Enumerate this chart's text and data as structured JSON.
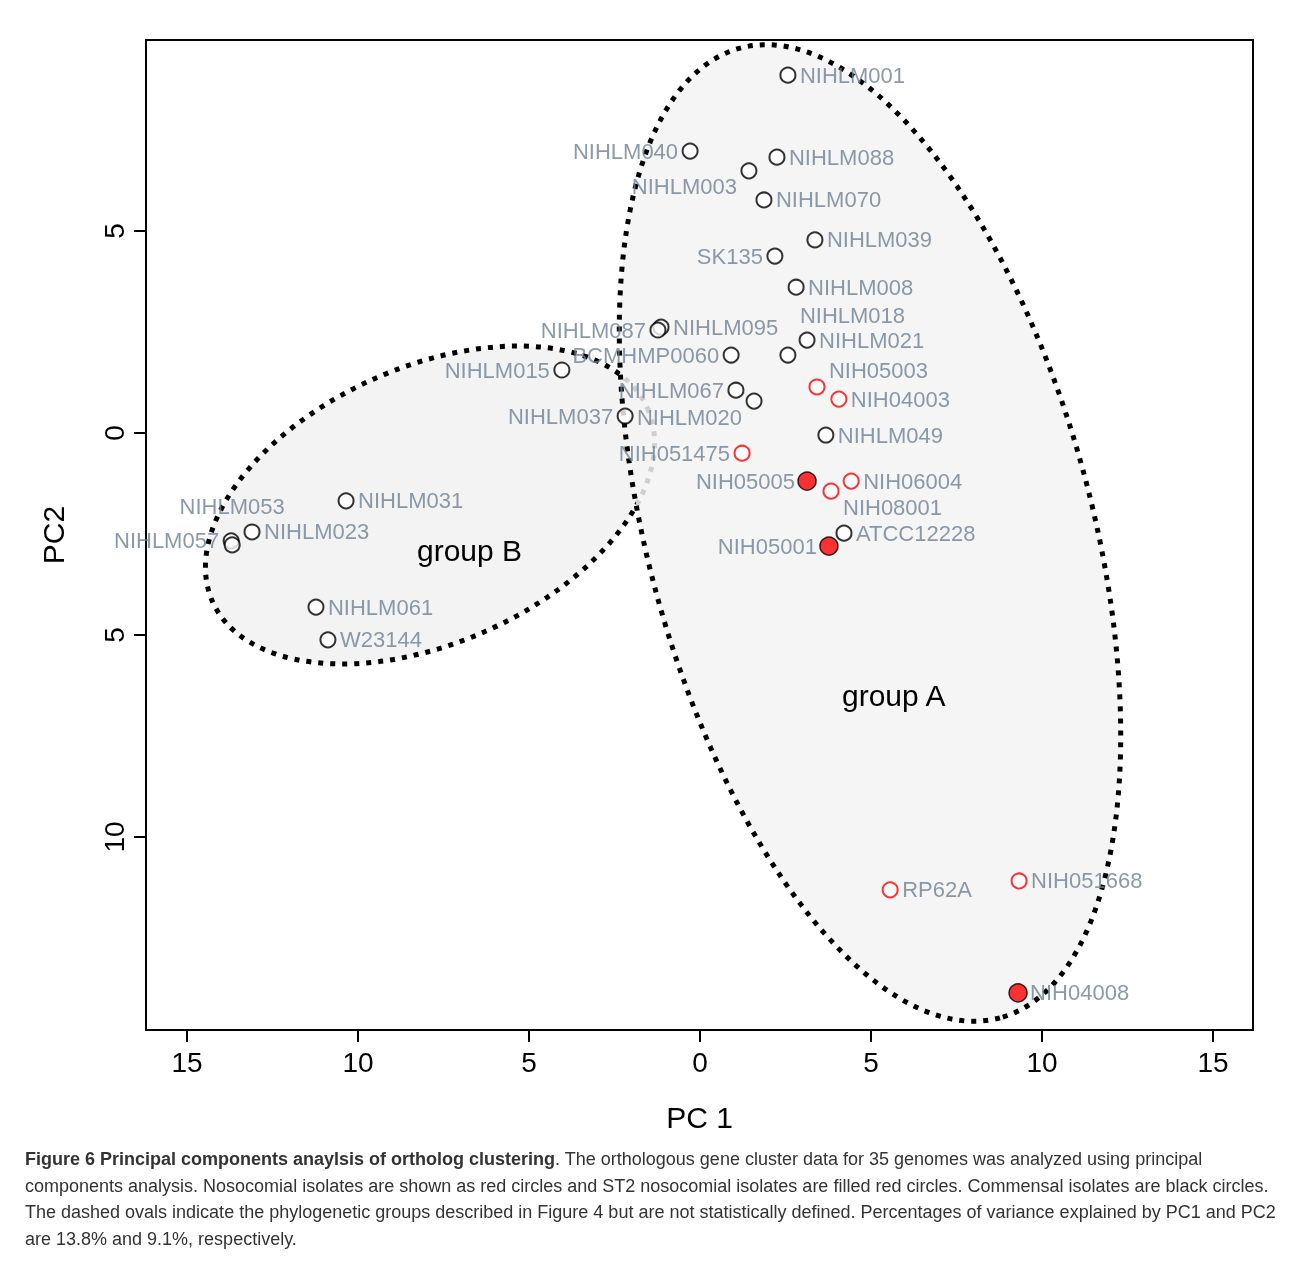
{
  "chart_data": {
    "type": "scatter",
    "xlabel": "PC 1",
    "ylabel": "PC2",
    "xlim": [
      -16.2,
      16.17
    ],
    "ylim": [
      -14.78,
      9.73
    ],
    "xticks": [
      {
        "value": -15,
        "label": "15"
      },
      {
        "value": -10,
        "label": "10"
      },
      {
        "value": -5,
        "label": "5"
      },
      0,
      5,
      10,
      15
    ],
    "yticks": [
      {
        "value": -10,
        "label": "10"
      },
      {
        "value": -5,
        "label": "5"
      },
      0,
      5
    ],
    "grid": false,
    "marker": "circle",
    "series": [
      {
        "color": "#000000",
        "x": [
          2.57,
          -0.29,
          2.25,
          1.43,
          1.87,
          3.36,
          2.19,
          2.81,
          -1.14,
          -1.23,
          0.91,
          3.13,
          2.57,
          1.05,
          1.58,
          3.68,
          4.21,
          -4.04,
          -2.19,
          -10.35,
          -13.1,
          -13.71,
          -13.68,
          -11.23,
          -10.88
        ],
        "values": [
          8.86,
          6.98,
          6.83,
          6.49,
          5.77,
          4.78,
          4.38,
          3.61,
          2.62,
          2.55,
          1.93,
          2.3,
          1.93,
          1.06,
          0.79,
          -0.05,
          -2.48,
          1.56,
          0.42,
          -1.68,
          -2.45,
          -2.67,
          -2.77,
          -4.31,
          -5.12
        ],
        "value_labels": [
          "NIHLM001",
          "NIHLM040",
          "NIHLM088",
          "NIHLM003",
          "NIHLM070",
          "NIHLM039",
          "SK135",
          "NIHLM008",
          "NIHLM095",
          "NIHLM087",
          "BCMHMP0060",
          "NIHLM021",
          "NIHLM018",
          "NIHLM067",
          "NIHLM020",
          "NIHLM049",
          "ATCC12228",
          "NIHLM015",
          "NIHLM037",
          "NIHLM031",
          "NIHLM023",
          "NIHLM057",
          "NIHLM053",
          "NIHLM061",
          "W23144"
        ]
      },
      {
        "color": "#ff0000",
        "x": [
          3.42,
          4.06,
          1.23,
          4.42,
          3.83,
          5.56,
          9.33
        ],
        "values": [
          1.14,
          0.84,
          -0.5,
          -1.19,
          -1.44,
          -11.31,
          -11.09
        ],
        "value_labels": [
          "NIH05003",
          "NIH04003",
          "NIH051475",
          "NIH06004",
          "NIH08001",
          "RP62A",
          "NIH051668"
        ]
      },
      {
        "color": "#000000",
        "colors": [
          "#ff0000",
          "#ff0000",
          "#ff0000"
        ],
        "x": [
          3.13,
          3.77,
          9.3
        ],
        "values": [
          -1.19,
          -2.8,
          -13.86
        ],
        "value_labels": [
          "NIH05005",
          "NIH05001",
          "NIH04008"
        ]
      }
    ],
    "annotations": [
      "group A",
      "group B",
      "Figure 6 Principal components anaylsis of ortholog clustering",
      ". The orthologous gene cluster data for 35 genomes was analyzed using principal components analysis. Nosocomial isolates are shown as red circles and ST2 nosocomial isolates are filled red circles. Commensal isolates are black circles. The dashed ovals indicate the phylogenetic groups described in Figure 4 but are not statistically defined. Percentages of variance explained by PC1 and PC2 are 13.8% and 9.1%, respectively."
    ]
  }
}
